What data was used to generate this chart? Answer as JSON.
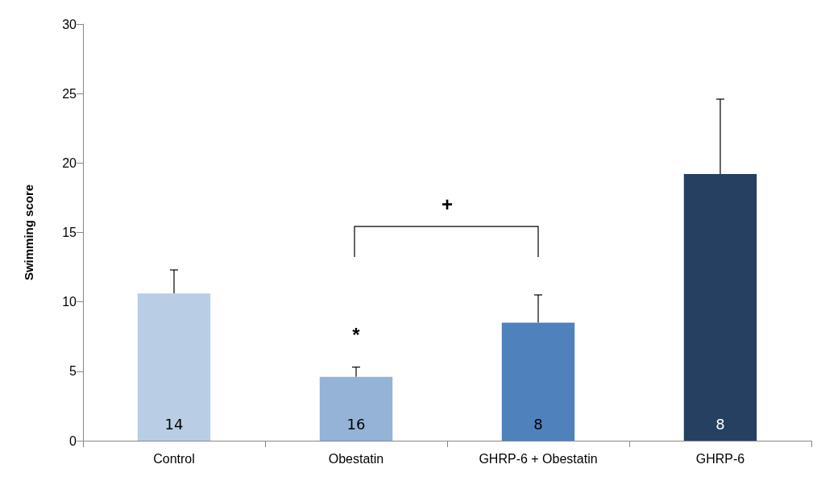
{
  "chart_data": {
    "type": "bar",
    "ylabel": "Swimming score",
    "categories": [
      "Control",
      "Obestatin",
      "GHRP-6 + Obestatin",
      "GHRP-6"
    ],
    "values": [
      10.6,
      4.6,
      8.5,
      19.2
    ],
    "colors": [
      "#b9cde5",
      "#95b3d7",
      "#4f81bd",
      "#254061"
    ],
    "errors": [
      1.7,
      0.7,
      2.0,
      5.4
    ],
    "ylim": [
      0,
      30
    ],
    "yticks": [
      0,
      5,
      10,
      15,
      20,
      25,
      30
    ],
    "grid": false,
    "annotations": [
      "14",
      "16",
      "8",
      "8",
      "*",
      "+"
    ]
  }
}
